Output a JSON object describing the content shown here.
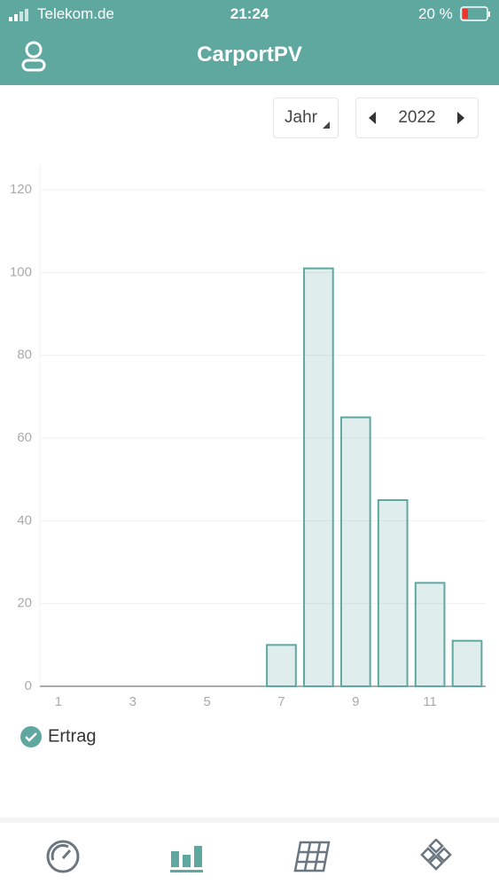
{
  "status_bar": {
    "carrier": "Telekom.de",
    "time": "21:24",
    "battery": "20 %"
  },
  "header": {
    "title": "CarportPV"
  },
  "controls": {
    "period": "Jahr",
    "year": "2022"
  },
  "chart_data": {
    "type": "bar",
    "categories": [
      "1",
      null,
      "3",
      null,
      "5",
      null,
      "7",
      null,
      "9",
      null,
      "11",
      null
    ],
    "series": [
      {
        "name": "Ertrag",
        "color": "#5fa8a0",
        "values": [
          0,
          0,
          0,
          0,
          0,
          0,
          10,
          101,
          65,
          45,
          25,
          11
        ]
      }
    ],
    "ylim": [
      0,
      126
    ],
    "yticks": [
      0,
      20,
      40,
      60,
      80,
      100,
      120
    ],
    "grid": true
  }
}
